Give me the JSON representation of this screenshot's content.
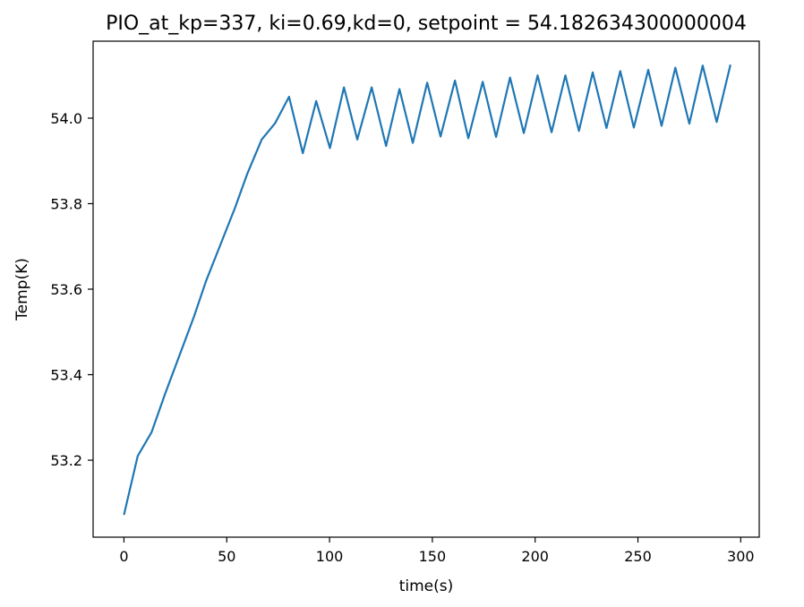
{
  "chart_data": {
    "type": "line",
    "title": "PIO_at_kp=337, ki=0.69,kd=0, setpoint = 54.182634300000004",
    "xlabel": "time(s)",
    "ylabel": "Temp(K)",
    "xlim": [
      -15,
      309
    ],
    "ylim": [
      53.02,
      54.18
    ],
    "xticks": [
      0,
      50,
      100,
      150,
      200,
      250,
      300
    ],
    "xtick_labels": [
      "0",
      "50",
      "100",
      "150",
      "200",
      "250",
      "300"
    ],
    "yticks": [
      53.2,
      53.4,
      53.6,
      53.8,
      54.0
    ],
    "ytick_labels": [
      "53.2",
      "53.4",
      "53.6",
      "53.8",
      "54.0"
    ],
    "grid": false,
    "series": [
      {
        "color": "#1f77b4",
        "x": [
          0,
          6.7,
          13.4,
          20,
          27,
          34,
          40,
          47,
          54,
          60,
          67,
          73.5,
          80.3,
          87,
          93.5,
          100.2,
          107,
          113.5,
          120.5,
          127.5,
          134,
          140.5,
          147.5,
          154,
          161,
          167.5,
          174.5,
          181,
          187.8,
          194.5,
          201.2,
          208,
          214.7,
          221.3,
          228,
          234.7,
          241.4,
          248,
          255,
          261.5,
          268.2,
          275,
          281.5,
          288.3,
          295
        ],
        "y": [
          53.072,
          53.21,
          53.265,
          53.355,
          53.445,
          53.535,
          53.62,
          53.705,
          53.79,
          53.87,
          53.95,
          53.988,
          54.05,
          53.918,
          54.04,
          53.93,
          54.072,
          53.95,
          54.072,
          53.935,
          54.068,
          53.942,
          54.083,
          53.957,
          54.088,
          53.953,
          54.085,
          53.956,
          54.095,
          53.965,
          54.1,
          53.967,
          54.1,
          53.97,
          54.107,
          53.977,
          54.11,
          53.978,
          54.113,
          53.982,
          54.118,
          53.987,
          54.123,
          53.991,
          54.125
        ]
      }
    ]
  }
}
